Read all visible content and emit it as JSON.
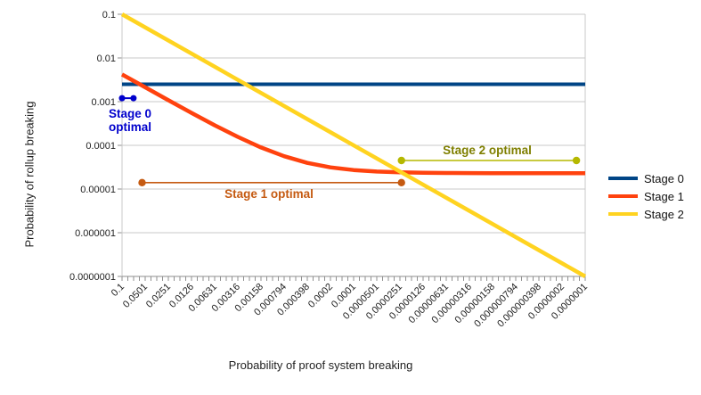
{
  "chart_data": {
    "type": "line",
    "title": "",
    "xlabel": "Probability of proof system breaking",
    "ylabel": "Probability of rollup breaking",
    "x_scale": "log-reversed",
    "y_scale": "log",
    "x_range": [
      0.1,
      1e-07
    ],
    "y_range": [
      0.1,
      1e-07
    ],
    "grid": "horizontal",
    "legend_position": "right",
    "x_tick_labels": [
      "0.1",
      "0.0501",
      "0.0251",
      "0.0126",
      "0.00631",
      "0.00316",
      "0.00158",
      "0.000794",
      "0.000398",
      "0.0002",
      "0.0001",
      "0.0000501",
      "0.0000251",
      "0.0000126",
      "0.00000631",
      "0.00000316",
      "0.00000158",
      "0.000000794",
      "0.000000398",
      "0.0000002",
      "0.0000001"
    ],
    "y_tick_labels": [
      "0.1",
      "0.01",
      "0.001",
      "0.0001",
      "0.00001",
      "0.000001",
      "0.0000001"
    ],
    "series": [
      {
        "name": "Stage 0",
        "color": "#004586",
        "points": [
          [
            0.1,
            0.0025
          ],
          [
            1e-07,
            0.0025
          ]
        ]
      },
      {
        "name": "Stage 1",
        "color": "#FF420E",
        "points": [
          [
            0.1,
            0.0042
          ],
          [
            0.0501,
            0.00213
          ],
          [
            0.0251,
            0.00108
          ],
          [
            0.0126,
            0.000552
          ],
          [
            0.00631,
            0.000288
          ],
          [
            0.00316,
            0.000156
          ],
          [
            0.00158,
            8.94e-05
          ],
          [
            0.000794,
            5.63e-05
          ],
          [
            0.000398,
            3.97e-05
          ],
          [
            0.0002,
            3.14e-05
          ],
          [
            0.0001,
            2.72e-05
          ],
          [
            5.01e-05,
            2.51e-05
          ],
          [
            2.51e-05,
            2.41e-05
          ],
          [
            1.26e-05,
            2.35e-05
          ],
          [
            6.31e-06,
            2.33e-05
          ],
          [
            3.16e-06,
            2.32e-05
          ],
          [
            1.58e-06,
            2.31e-05
          ],
          [
            7.94e-07,
            2.31e-05
          ],
          [
            3.98e-07,
            2.3e-05
          ],
          [
            2e-07,
            2.3e-05
          ],
          [
            1e-07,
            2.3e-05
          ]
        ]
      },
      {
        "name": "Stage 2",
        "color": "#FFD320",
        "points": [
          [
            0.1,
            0.1
          ],
          [
            1e-07,
            1e-07
          ]
        ]
      }
    ],
    "annotations": [
      {
        "id": "stage0-optimal",
        "label": "Stage 0 optimal",
        "text_color": "#0000cc",
        "line_color": "#0000cc",
        "x_from": 0.1,
        "x_to": 0.071,
        "y": 0.0012
      },
      {
        "id": "stage1-optimal",
        "label": "Stage 1 optimal",
        "text_color": "#c55a11",
        "line_color": "#c55a11",
        "x_from": 0.055,
        "x_to": 2.4e-05,
        "y": 1.4e-05
      },
      {
        "id": "stage2-optimal",
        "label": "Stage 2 optimal",
        "text_color": "#7f7f00",
        "line_color": "#b5b800",
        "x_from": 2.4e-05,
        "x_to": 1.3e-07,
        "y": 4.5e-05
      }
    ]
  }
}
